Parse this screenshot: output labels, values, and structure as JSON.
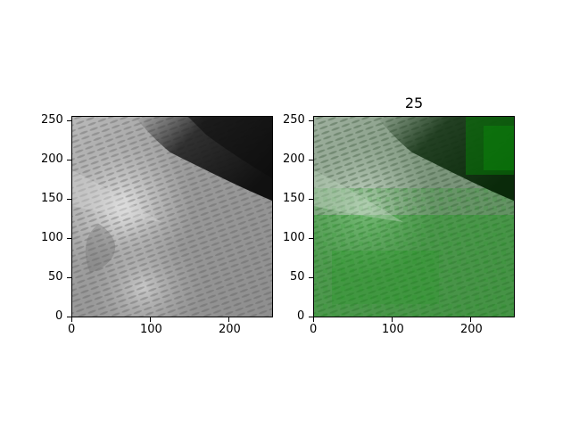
{
  "figure": {
    "left_panel": {
      "title": "",
      "image_name": "grayscale cloud texture image",
      "x_ticks": [
        "0",
        "100",
        "200"
      ],
      "y_ticks": [
        "0",
        "50",
        "100",
        "150",
        "200",
        "250"
      ]
    },
    "right_panel": {
      "title": "25",
      "image_name": "cloud texture image with green overlay mask",
      "overlay_color": "#1a9c1a",
      "x_ticks": [
        "0",
        "100",
        "200"
      ],
      "y_ticks": [
        "0",
        "50",
        "100",
        "150",
        "200",
        "250"
      ]
    }
  }
}
